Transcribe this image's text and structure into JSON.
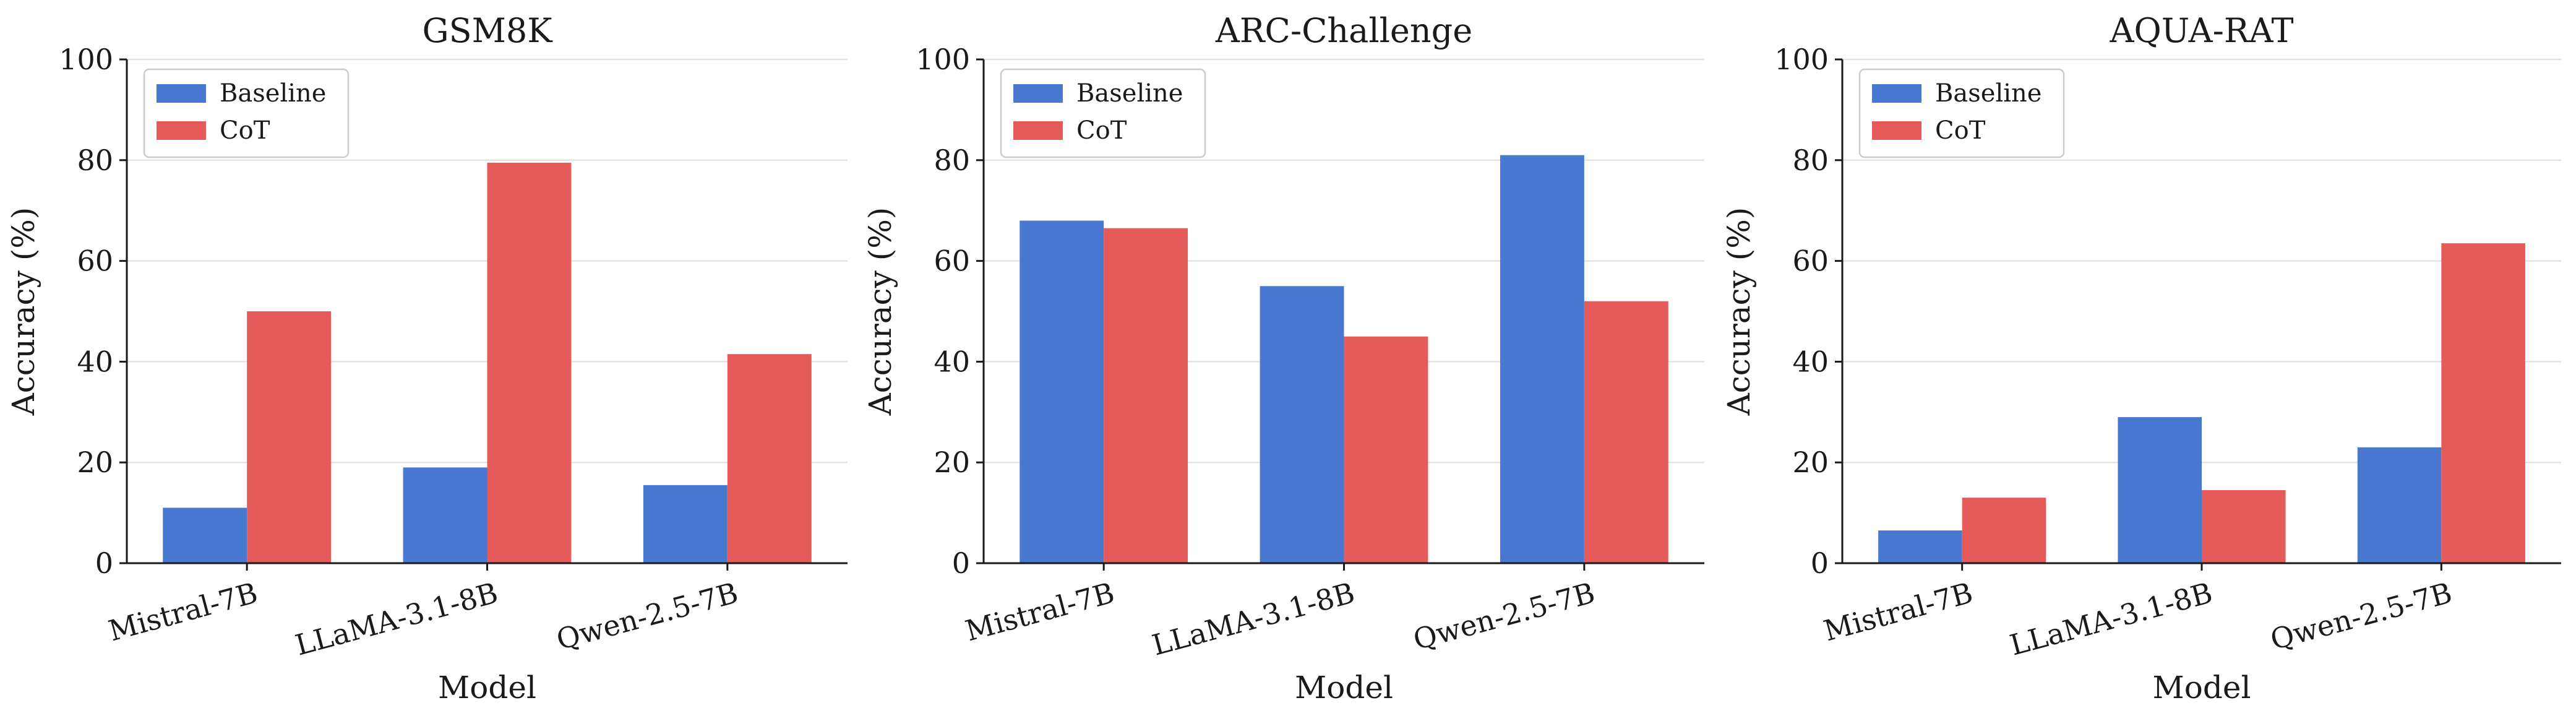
{
  "colors": {
    "baseline": "#4878d0",
    "cot": "#e65a5a",
    "grid": "#e3e3e3",
    "axis": "#1a1a1a"
  },
  "chart_data": [
    {
      "type": "bar",
      "title": "GSM8K",
      "xlabel": "Model",
      "ylabel": "Accuracy (%)",
      "categories": [
        "Mistral-7B",
        "LLaMA-3.1-8B",
        "Qwen-2.5-7B"
      ],
      "series": [
        {
          "name": "Baseline",
          "values": [
            11.0,
            19.0,
            15.5
          ]
        },
        {
          "name": "CoT",
          "values": [
            50.0,
            79.5,
            41.5
          ]
        }
      ],
      "ylim": [
        0,
        100
      ],
      "yticks": [
        "0",
        "20",
        "40",
        "60",
        "80",
        "100"
      ],
      "grid": "y",
      "legend": "upper-left"
    },
    {
      "type": "bar",
      "title": "ARC-Challenge",
      "xlabel": "Model",
      "ylabel": "Accuracy (%)",
      "categories": [
        "Mistral-7B",
        "LLaMA-3.1-8B",
        "Qwen-2.5-7B"
      ],
      "series": [
        {
          "name": "Baseline",
          "values": [
            68.0,
            55.0,
            81.0
          ]
        },
        {
          "name": "CoT",
          "values": [
            66.5,
            45.0,
            52.0
          ]
        }
      ],
      "ylim": [
        0,
        100
      ],
      "yticks": [
        "0",
        "20",
        "40",
        "60",
        "80",
        "100"
      ],
      "grid": "y",
      "legend": "upper-left"
    },
    {
      "type": "bar",
      "title": "AQUA-RAT",
      "xlabel": "Model",
      "ylabel": "Accuracy (%)",
      "categories": [
        "Mistral-7B",
        "LLaMA-3.1-8B",
        "Qwen-2.5-7B"
      ],
      "series": [
        {
          "name": "Baseline",
          "values": [
            6.5,
            29.0,
            23.0
          ]
        },
        {
          "name": "CoT",
          "values": [
            13.0,
            14.5,
            63.5
          ]
        }
      ],
      "ylim": [
        0,
        100
      ],
      "yticks": [
        "0",
        "20",
        "40",
        "60",
        "80",
        "100"
      ],
      "grid": "y",
      "legend": "upper-left"
    }
  ]
}
